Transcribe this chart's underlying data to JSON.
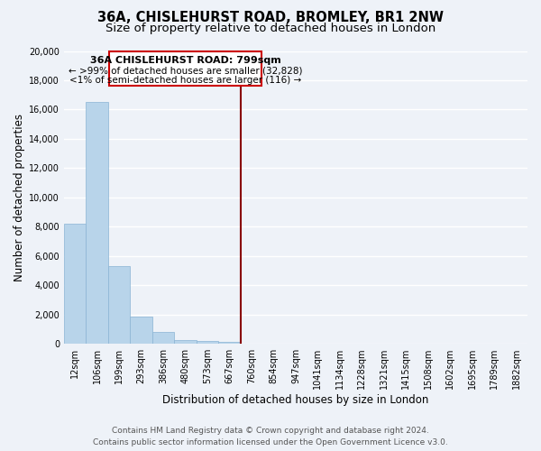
{
  "title": "36A, CHISLEHURST ROAD, BROMLEY, BR1 2NW",
  "subtitle": "Size of property relative to detached houses in London",
  "xlabel": "Distribution of detached houses by size in London",
  "ylabel": "Number of detached properties",
  "bar_labels": [
    "12sqm",
    "106sqm",
    "199sqm",
    "293sqm",
    "386sqm",
    "480sqm",
    "573sqm",
    "667sqm",
    "760sqm",
    "854sqm",
    "947sqm",
    "1041sqm",
    "1134sqm",
    "1228sqm",
    "1321sqm",
    "1415sqm",
    "1508sqm",
    "1602sqm",
    "1695sqm",
    "1789sqm",
    "1882sqm"
  ],
  "bar_heights": [
    8200,
    16500,
    5300,
    1850,
    800,
    280,
    220,
    150,
    0,
    0,
    0,
    0,
    0,
    0,
    0,
    0,
    0,
    0,
    0,
    0,
    0
  ],
  "bar_color": "#b8d4ea",
  "bar_edge_color": "#8ab4d4",
  "vline_x_index": 8,
  "vline_color": "#880000",
  "ylim": [
    0,
    20000
  ],
  "yticks": [
    0,
    2000,
    4000,
    6000,
    8000,
    10000,
    12000,
    14000,
    16000,
    18000,
    20000
  ],
  "annotation_title": "36A CHISLEHURST ROAD: 799sqm",
  "annotation_line1": "← >99% of detached houses are smaller (32,828)",
  "annotation_line2": "<1% of semi-detached houses are larger (116) →",
  "annotation_box_color": "#ffffff",
  "annotation_box_edge": "#cc0000",
  "footer_line1": "Contains HM Land Registry data © Crown copyright and database right 2024.",
  "footer_line2": "Contains public sector information licensed under the Open Government Licence v3.0.",
  "bg_color": "#eef2f8",
  "grid_color": "#ffffff",
  "title_fontsize": 10.5,
  "subtitle_fontsize": 9.5,
  "axis_label_fontsize": 8.5,
  "tick_fontsize": 7,
  "footer_fontsize": 6.5,
  "annotation_fontsize": 8
}
